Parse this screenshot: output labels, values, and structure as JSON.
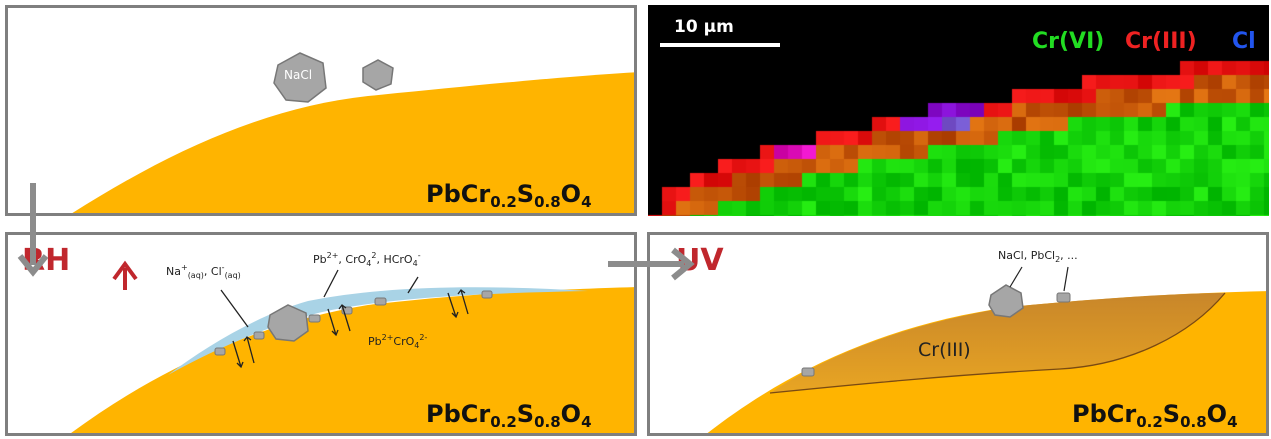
{
  "panel1": {
    "formula": {
      "main": "PbCr",
      "s1": "0.2",
      "mid": "S",
      "s2": "0.8",
      "end": "O",
      "s3": "4"
    },
    "crystal_label": "NaCl"
  },
  "panel2": {
    "rh_label": "RH",
    "ions_1": {
      "a": "Na",
      "a_sup": "+",
      "a_sub": "(aq)",
      "sep": ", ",
      "b": "Cl",
      "b_sup": "-",
      "b_sub": "(aq)"
    },
    "ions_2": {
      "a": "Pb",
      "a_sup": "2+",
      "sep1": ", CrO",
      "b_sub": "4",
      "b_sup": "2",
      "sep2": ", HCrO",
      "c_sub": "4",
      "c_sup": "-"
    },
    "ions_3": {
      "a": "Pb",
      "a_sup": "2+",
      "b": "CrO",
      "b_sub": "4",
      "b_sup": "2-"
    },
    "formula": {
      "main": "PbCr",
      "s1": "0.2",
      "mid": "S",
      "s2": "0.8",
      "end": "O",
      "s3": "4"
    }
  },
  "panel3": {
    "uv_label": "UV",
    "products": {
      "a": "NaCl, PbCl",
      "a_sub": "2",
      "b": ", ..."
    },
    "crIII_label": "Cr(III)",
    "formula": {
      "main": "PbCr",
      "s1": "0.2",
      "mid": "S",
      "s2": "0.8",
      "end": "O",
      "s3": "4"
    }
  },
  "xrf_map": {
    "scale_label": "10 µm",
    "legend": [
      {
        "label": "Cr(VI)",
        "color": "#22dd22"
      },
      {
        "label": "Cr(III)",
        "color": "#ee2222"
      },
      {
        "label": "Cl",
        "color": "#2255ee"
      }
    ]
  },
  "colors": {
    "substrate": "#ffb400",
    "water": "#a9d3e6",
    "crystal": "#a6a6a6",
    "arrow": "#8c8c8c",
    "accent_red": "#c0272d",
    "border": "#7f7f7f"
  }
}
